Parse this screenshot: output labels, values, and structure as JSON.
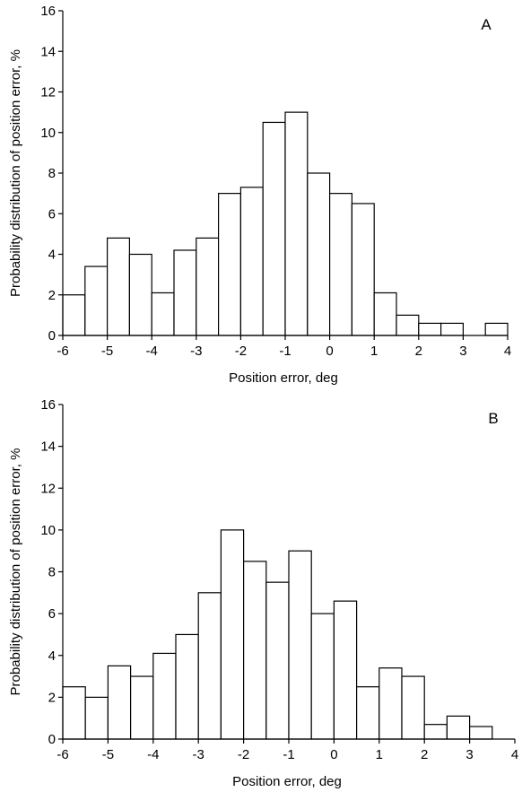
{
  "chart_data": [
    {
      "type": "bar",
      "panel_label": "A",
      "xlabel": "Position error, deg",
      "ylabel": "Probability distribution of position error, %",
      "xlim": [
        -6,
        4
      ],
      "ylim": [
        0,
        16
      ],
      "xticks": [
        -6,
        -5,
        -4,
        -3,
        -2,
        -1,
        0,
        1,
        2,
        3,
        4
      ],
      "yticks": [
        0,
        2,
        4,
        6,
        8,
        10,
        12,
        14,
        16
      ],
      "grid": false,
      "bin_width": 0.5,
      "bins": [
        {
          "x": -6.0,
          "value": 2.0
        },
        {
          "x": -5.5,
          "value": 3.4
        },
        {
          "x": -5.0,
          "value": 4.8
        },
        {
          "x": -4.5,
          "value": 4.0
        },
        {
          "x": -4.0,
          "value": 2.1
        },
        {
          "x": -3.5,
          "value": 4.2
        },
        {
          "x": -3.0,
          "value": 4.8
        },
        {
          "x": -2.5,
          "value": 7.0
        },
        {
          "x": -2.0,
          "value": 7.3
        },
        {
          "x": -1.5,
          "value": 10.5
        },
        {
          "x": -1.0,
          "value": 11.0
        },
        {
          "x": -0.5,
          "value": 8.0
        },
        {
          "x": 0.0,
          "value": 7.0
        },
        {
          "x": 0.5,
          "value": 6.5
        },
        {
          "x": 1.0,
          "value": 2.1
        },
        {
          "x": 1.5,
          "value": 1.0
        },
        {
          "x": 2.0,
          "value": 0.6
        },
        {
          "x": 2.5,
          "value": 0.6
        },
        {
          "x": 3.5,
          "value": 0.6
        }
      ]
    },
    {
      "type": "bar",
      "panel_label": "B",
      "xlabel": "Position error, deg",
      "ylabel": "Probability distribution of position error, %",
      "xlim": [
        -6,
        4
      ],
      "ylim": [
        0,
        16
      ],
      "xticks": [
        -6,
        -5,
        -4,
        -3,
        -2,
        -1,
        0,
        1,
        2,
        3,
        4
      ],
      "yticks": [
        0,
        2,
        4,
        6,
        8,
        10,
        12,
        14,
        16
      ],
      "grid": false,
      "bin_width": 0.5,
      "bins": [
        {
          "x": -6.0,
          "value": 2.5
        },
        {
          "x": -5.5,
          "value": 2.0
        },
        {
          "x": -5.0,
          "value": 3.5
        },
        {
          "x": -4.5,
          "value": 3.0
        },
        {
          "x": -4.0,
          "value": 4.1
        },
        {
          "x": -3.5,
          "value": 5.0
        },
        {
          "x": -3.0,
          "value": 7.0
        },
        {
          "x": -2.5,
          "value": 10.0
        },
        {
          "x": -2.0,
          "value": 8.5
        },
        {
          "x": -1.5,
          "value": 7.5
        },
        {
          "x": -1.0,
          "value": 9.0
        },
        {
          "x": -0.5,
          "value": 6.0
        },
        {
          "x": 0.0,
          "value": 6.6
        },
        {
          "x": 0.5,
          "value": 2.5
        },
        {
          "x": 1.0,
          "value": 3.4
        },
        {
          "x": 1.5,
          "value": 3.0
        },
        {
          "x": 2.0,
          "value": 0.7
        },
        {
          "x": 2.5,
          "value": 1.1
        },
        {
          "x": 3.0,
          "value": 0.6
        }
      ]
    }
  ]
}
